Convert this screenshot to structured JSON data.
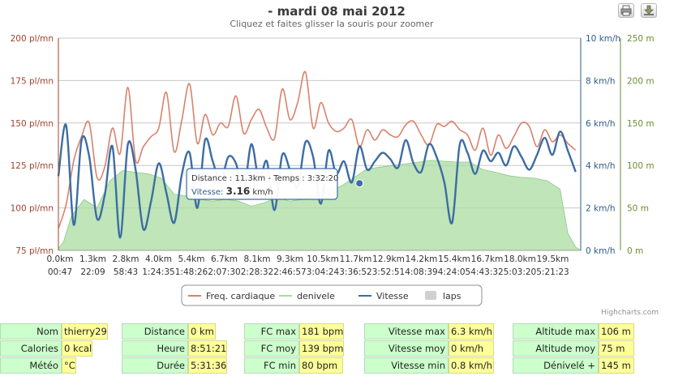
{
  "chart_data": {
    "type": "line",
    "title": "- mardi 08 mai 2012",
    "subtitle": "Cliquez et faites glisser la souris pour zoomer",
    "x_tick_labels_distance": [
      "0.0km",
      "1.3km",
      "2.8km",
      "4.0km",
      "5.4km",
      "6.7km",
      "8.1km",
      "9.3km",
      "10.5km",
      "11.7km",
      "12.9km",
      "14.2km",
      "15.4km",
      "16.7km",
      "18.0km",
      "19.5km"
    ],
    "x_tick_labels_time": [
      "00:47",
      "22:09",
      "58:43",
      "1:24:35",
      "1:48:26",
      "2:07:30",
      "2:28:32",
      "2:46:57",
      "3:04:24",
      "3:36:52",
      "3:52:51",
      "4:08:39",
      "4:24:05",
      "4:43:32",
      "5:03:20",
      "5:21:23"
    ],
    "y_axes": [
      {
        "name": "Freq. cardiaque",
        "unit": "pl/mn",
        "range": [
          75,
          200
        ],
        "tick_labels": [
          "75 pl/mn",
          "100 pl/mn",
          "125 pl/mn",
          "150 pl/mn",
          "175 pl/mn",
          "200 pl/mn"
        ],
        "color": "#a0432e"
      },
      {
        "name": "Vitesse",
        "unit": "km/h",
        "range": [
          0,
          10
        ],
        "tick_labels": [
          "0 km/h",
          "2 km/h",
          "4 km/h",
          "6 km/h",
          "8 km/h",
          "10 km/h"
        ],
        "color": "#2e5b8c"
      },
      {
        "name": "denivele",
        "unit": "m",
        "range": [
          0,
          250
        ],
        "tick_labels": [
          "0 m",
          "50 m",
          "100 m",
          "150 m",
          "200 m",
          "250 m"
        ],
        "color": "#6b8f2f"
      }
    ],
    "x_range": [
      0,
      20.3
    ],
    "grid": true,
    "legend_position": "bottom",
    "series": [
      {
        "name": "Freq. cardiaque",
        "axis": 0,
        "color": "#d9826b",
        "x": [
          0.0,
          0.3,
          0.6,
          0.9,
          1.2,
          1.5,
          1.8,
          2.1,
          2.4,
          2.7,
          3.0,
          3.3,
          3.6,
          3.9,
          4.2,
          4.5,
          4.8,
          5.1,
          5.4,
          5.7,
          6.0,
          6.3,
          6.6,
          6.9,
          7.2,
          7.5,
          7.8,
          8.1,
          8.4,
          8.7,
          9.0,
          9.3,
          9.6,
          9.9,
          10.2,
          10.5,
          10.8,
          11.1,
          11.4,
          11.7,
          12.0,
          12.3,
          12.6,
          12.9,
          13.2,
          13.5,
          13.8,
          14.1,
          14.4,
          14.7,
          15.0,
          15.3,
          15.6,
          15.9,
          16.2,
          16.5,
          16.8,
          17.1,
          17.4,
          17.7,
          18.0,
          18.3,
          18.6,
          18.9,
          19.2,
          19.5,
          19.8,
          20.1
        ],
        "y": [
          88,
          102,
          128,
          142,
          150,
          118,
          124,
          147,
          132,
          171,
          128,
          136,
          142,
          147,
          168,
          133,
          152,
          173,
          138,
          155,
          143,
          150,
          148,
          166,
          144,
          152,
          158,
          147,
          141,
          170,
          152,
          162,
          180,
          147,
          162,
          150,
          145,
          147,
          152,
          136,
          146,
          140,
          146,
          143,
          142,
          149,
          151,
          143,
          137,
          149,
          148,
          151,
          146,
          143,
          134,
          147,
          131,
          143,
          135,
          142,
          150,
          148,
          136,
          146,
          139,
          143,
          138,
          134
        ]
      },
      {
        "name": "denivele",
        "axis": 2,
        "color": "#a9dca0",
        "x": [
          0.0,
          0.2,
          0.5,
          1.0,
          1.5,
          2.0,
          2.5,
          3.0,
          3.5,
          4.0,
          4.5,
          5.0,
          5.5,
          6.0,
          6.5,
          7.0,
          7.5,
          8.0,
          8.5,
          9.0,
          9.5,
          10.0,
          10.5,
          11.0,
          11.5,
          12.0,
          12.5,
          13.0,
          13.5,
          14.0,
          14.5,
          15.0,
          15.5,
          16.0,
          16.5,
          17.0,
          17.5,
          18.0,
          18.5,
          19.0,
          19.5,
          19.8,
          20.1,
          20.3
        ],
        "y": [
          2,
          10,
          40,
          60,
          50,
          82,
          94,
          92,
          90,
          85,
          66,
          64,
          60,
          58,
          60,
          58,
          52,
          56,
          62,
          58,
          60,
          68,
          70,
          76,
          86,
          96,
          98,
          100,
          102,
          104,
          106,
          105,
          104,
          104,
          95,
          92,
          88,
          86,
          85,
          82,
          72,
          20,
          4,
          0
        ]
      },
      {
        "name": "Vitesse",
        "axis": 1,
        "color": "#3d6da3",
        "x": [
          0.0,
          0.3,
          0.6,
          0.9,
          1.2,
          1.5,
          1.8,
          2.1,
          2.4,
          2.7,
          3.0,
          3.3,
          3.6,
          3.9,
          4.2,
          4.5,
          4.8,
          5.1,
          5.4,
          5.7,
          6.0,
          6.3,
          6.6,
          6.9,
          7.2,
          7.5,
          7.8,
          8.1,
          8.4,
          8.7,
          9.0,
          9.3,
          9.6,
          9.9,
          10.2,
          10.5,
          10.8,
          11.1,
          11.4,
          11.7,
          12.0,
          12.3,
          12.6,
          12.9,
          13.2,
          13.5,
          13.8,
          14.1,
          14.4,
          14.7,
          15.0,
          15.3,
          15.6,
          15.9,
          16.2,
          16.5,
          16.8,
          17.1,
          17.4,
          17.7,
          18.0,
          18.3,
          18.6,
          18.9,
          19.2,
          19.5,
          19.8,
          20.1
        ],
        "y": [
          3.5,
          5.9,
          1.2,
          5.2,
          4.4,
          1.5,
          2.6,
          4.9,
          0.6,
          5.0,
          3.8,
          1.0,
          2.3,
          4.1,
          2.7,
          1.3,
          3.6,
          4.6,
          2.0,
          5.2,
          4.2,
          3.2,
          4.4,
          4.1,
          2.8,
          5.0,
          3.3,
          4.2,
          1.9,
          4.5,
          3.8,
          3.0,
          5.1,
          4.4,
          2.2,
          4.7,
          3.6,
          4.2,
          3.2,
          4.9,
          3.8,
          4.2,
          4.6,
          4.3,
          3.9,
          5.2,
          4.1,
          3.7,
          5.0,
          4.4,
          3.2,
          1.3,
          5.0,
          4.6,
          3.6,
          4.7,
          4.2,
          4.6,
          4.0,
          4.9,
          4.4,
          3.8,
          4.5,
          5.3,
          4.5,
          5.6,
          4.7,
          3.7
        ]
      }
    ],
    "tooltip": {
      "line1": "Distance : 11.3km - Temps : 3:32:20",
      "prefix": "Vitesse: ",
      "value": "3.16",
      "unit": " km/h",
      "x": 11.7,
      "y": 3.16
    },
    "legend": [
      {
        "label": "Freq. cardiaque",
        "color": "#d9826b",
        "kind": "line"
      },
      {
        "label": "denivele",
        "color": "#a9dca0",
        "kind": "line"
      },
      {
        "label": "Vitesse",
        "color": "#3d6da3",
        "kind": "line"
      },
      {
        "label": "laps",
        "color": "#d0d0d0",
        "kind": "box",
        "disabled": true
      }
    ],
    "credits": "Highcharts.com"
  },
  "stats": [
    [
      {
        "label": "Nom",
        "value": "thierry29"
      },
      {
        "label": "Calories",
        "value": "0 kcal"
      },
      {
        "label": "Météo",
        "value": "°C"
      }
    ],
    [
      {
        "label": "Distance",
        "value": "0 km"
      },
      {
        "label": "Heure",
        "value": "8:51:21"
      },
      {
        "label": "Durée",
        "value": "5:31:36"
      }
    ],
    [
      {
        "label": "FC max",
        "value": "181 bpm"
      },
      {
        "label": "FC moy",
        "value": "139 bpm"
      },
      {
        "label": "FC min",
        "value": "80 bpm"
      }
    ],
    [
      {
        "label": "Vitesse max",
        "value": "6.3 km/h"
      },
      {
        "label": "Vitesse moy",
        "value": "0 km/h"
      },
      {
        "label": "Vitesse min",
        "value": "0.8 km/h"
      }
    ],
    [
      {
        "label": "Altitude max",
        "value": "106 m"
      },
      {
        "label": "Altitude moy",
        "value": "75 m"
      },
      {
        "label": "Dénivelé +",
        "value": "145 m"
      }
    ]
  ],
  "icons": {
    "print": "printer-icon",
    "export": "download-icon"
  }
}
